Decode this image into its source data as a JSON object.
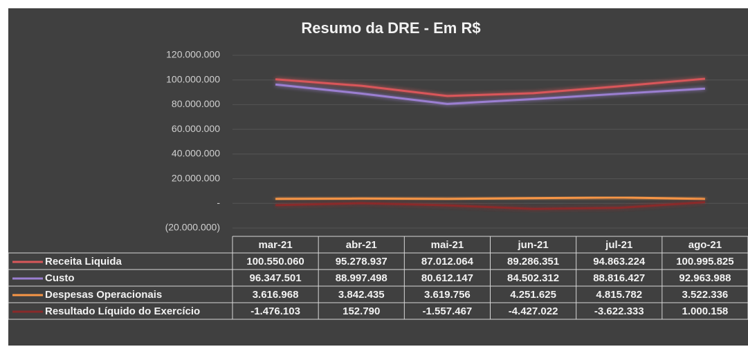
{
  "chart_data": {
    "type": "line",
    "title": "Resumo da DRE - Em R$",
    "categories": [
      "mar-21",
      "abr-21",
      "mai-21",
      "jun-21",
      "jul-21",
      "ago-21"
    ],
    "series": [
      {
        "name": "Receita Liquida",
        "color": "#d9575a",
        "values": [
          100550060,
          95278937,
          87012064,
          89286351,
          94863224,
          100995825
        ],
        "value_labels": [
          "100.550.060",
          "95.278.937",
          "87.012.064",
          "89.286.351",
          "94.863.224",
          "100.995.825"
        ]
      },
      {
        "name": "Custo",
        "color": "#9b7fd1",
        "values": [
          96347501,
          88997498,
          80612147,
          84502312,
          88816427,
          92963988
        ],
        "value_labels": [
          "96.347.501",
          "88.997.498",
          "80.612.147",
          "84.502.312",
          "88.816.427",
          "92.963.988"
        ]
      },
      {
        "name": "Despesas Operacionais",
        "color": "#f79646",
        "values": [
          3616968,
          3842435,
          3619756,
          4251625,
          4815782,
          3522336
        ],
        "value_labels": [
          "3.616.968",
          "3.842.435",
          "3.619.756",
          "4.251.625",
          "4.815.782",
          "3.522.336"
        ]
      },
      {
        "name": "Resultado Líquido do Exercício",
        "color": "#8a2a2a",
        "values": [
          -1476103,
          152790,
          -1557467,
          -4427022,
          -3622333,
          1000158
        ],
        "value_labels": [
          "-1.476.103",
          "152.790",
          "-1.557.467",
          "-4.427.022",
          "-3.622.333",
          "1.000.158"
        ]
      }
    ],
    "ylim": [
      -20000000,
      120000000
    ],
    "yticks": [
      {
        "value": -20000000,
        "label": "(20.000.000)"
      },
      {
        "value": 0,
        "label": "-"
      },
      {
        "value": 20000000,
        "label": "20.000.000"
      },
      {
        "value": 40000000,
        "label": "40.000.000"
      },
      {
        "value": 60000000,
        "label": "60.000.000"
      },
      {
        "value": 80000000,
        "label": "80.000.000"
      },
      {
        "value": 100000000,
        "label": "100.000.000"
      },
      {
        "value": 120000000,
        "label": "120.000.000"
      }
    ],
    "grid": true
  }
}
